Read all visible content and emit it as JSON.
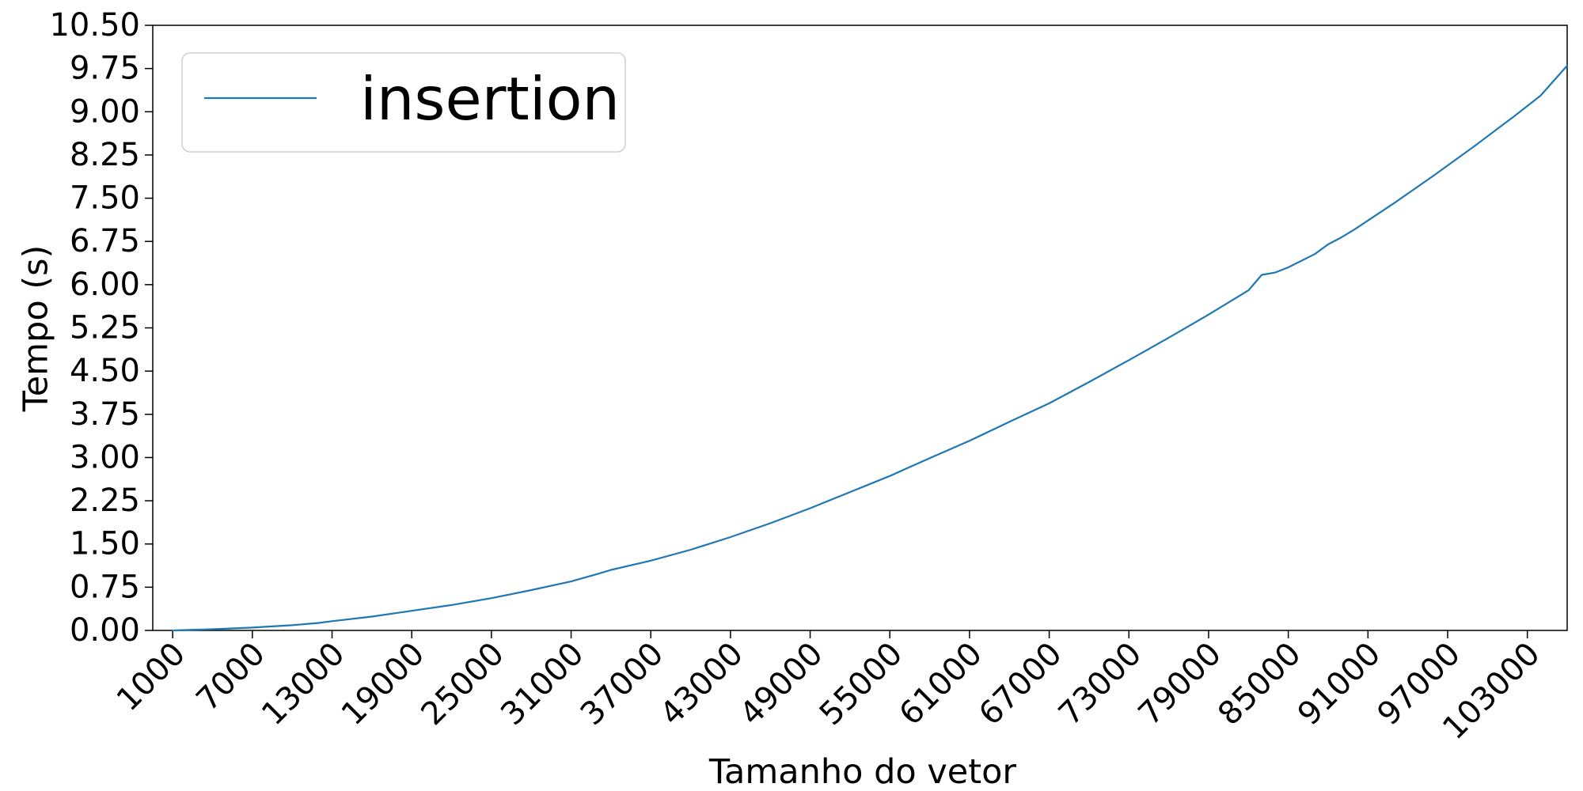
{
  "chart_data": {
    "type": "line",
    "title": "",
    "xlabel": "Tamanho do vetor",
    "ylabel": "Tempo (s)",
    "xlim": [
      -500,
      106000
    ],
    "ylim": [
      0,
      10.5
    ],
    "x_ticks": [
      1000,
      7000,
      13000,
      19000,
      25000,
      31000,
      37000,
      43000,
      49000,
      55000,
      61000,
      67000,
      73000,
      79000,
      85000,
      91000,
      97000,
      103000
    ],
    "x_tick_labels": [
      "1000",
      "7000",
      "13000",
      "19000",
      "25000",
      "31000",
      "37000",
      "43000",
      "49000",
      "55000",
      "61000",
      "67000",
      "73000",
      "79000",
      "85000",
      "91000",
      "97000",
      "103000"
    ],
    "y_ticks": [
      0,
      0.75,
      1.5,
      2.25,
      3.0,
      3.75,
      4.5,
      5.25,
      6.0,
      6.75,
      7.5,
      8.25,
      9.0,
      9.75,
      10.5
    ],
    "y_tick_labels": [
      "0.00",
      "0.75",
      "1.50",
      "2.25",
      "3.00",
      "3.75",
      "4.50",
      "5.25",
      "6.00",
      "6.75",
      "7.50",
      "8.25",
      "9.00",
      "9.75",
      "10.50"
    ],
    "grid": false,
    "legend_position": "top-left",
    "series": [
      {
        "name": "insertion",
        "color": "#1f77b4",
        "x": [
          1000,
          4000,
          7000,
          10000,
          12000,
          13000,
          16000,
          19000,
          22000,
          25000,
          28000,
          31000,
          33000,
          34000,
          37000,
          40000,
          43000,
          46000,
          49000,
          52000,
          55000,
          58000,
          61000,
          64000,
          67000,
          70000,
          73000,
          76000,
          79000,
          82000,
          83000,
          84000,
          85000,
          87000,
          88000,
          89000,
          90000,
          93000,
          96000,
          99000,
          102000,
          104000,
          106000
        ],
        "y": [
          0.0,
          0.02,
          0.05,
          0.09,
          0.13,
          0.16,
          0.24,
          0.34,
          0.44,
          0.56,
          0.7,
          0.85,
          0.98,
          1.05,
          1.21,
          1.4,
          1.62,
          1.86,
          2.12,
          2.4,
          2.68,
          2.99,
          3.29,
          3.62,
          3.94,
          4.31,
          4.69,
          5.08,
          5.48,
          5.9,
          6.17,
          6.21,
          6.3,
          6.53,
          6.7,
          6.82,
          6.96,
          7.42,
          7.9,
          8.4,
          8.92,
          9.28,
          9.8
        ]
      }
    ]
  }
}
